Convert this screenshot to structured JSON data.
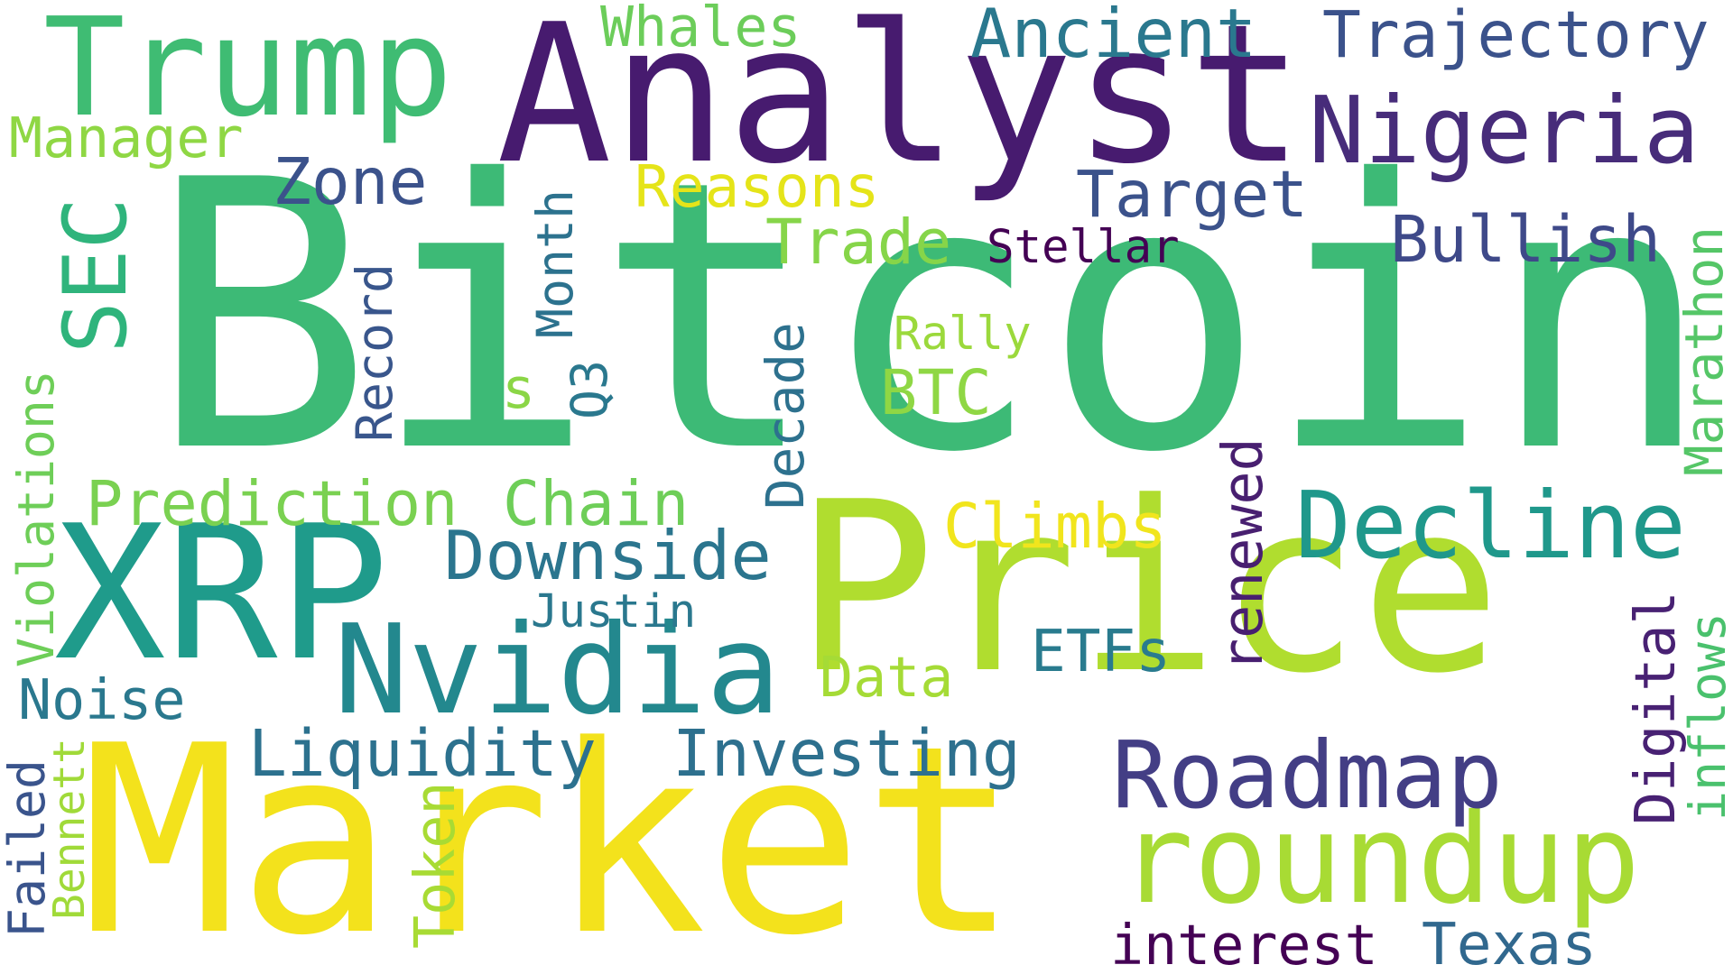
{
  "words": [
    {
      "text": "Bitcoin",
      "color": "#3dba76"
    },
    {
      "text": "Price",
      "color": "#b0dd2f"
    },
    {
      "text": "Market",
      "color": "#f3e21c"
    },
    {
      "text": "Analyst",
      "color": "#471b6f"
    },
    {
      "text": "XRP",
      "color": "#1f9b8b"
    },
    {
      "text": "Trump",
      "color": "#3fbc73"
    },
    {
      "text": "Nigeria",
      "color": "#472c7a"
    },
    {
      "text": "roundup",
      "color": "#a8db34"
    },
    {
      "text": "Nvidia",
      "color": "#23888e"
    },
    {
      "text": "Decline",
      "color": "#1f988b"
    },
    {
      "text": "Roadmap",
      "color": "#433e85"
    },
    {
      "text": "SEC",
      "color": "#2fb47c"
    },
    {
      "text": "Trajectory",
      "color": "#3b528b"
    },
    {
      "text": "Ancient",
      "color": "#2a788e"
    },
    {
      "text": "Whales",
      "color": "#6ccd5a"
    },
    {
      "text": "Manager",
      "color": "#8fd744"
    },
    {
      "text": "Target",
      "color": "#3b528b"
    },
    {
      "text": "Bullish",
      "color": "#3e4989"
    },
    {
      "text": "Zone",
      "color": "#3b528b"
    },
    {
      "text": "Reasons",
      "color": "#e5e419"
    },
    {
      "text": "Trade",
      "color": "#86d549"
    },
    {
      "text": "Stellar",
      "color": "#440154"
    },
    {
      "text": "Month",
      "color": "#2c728e"
    },
    {
      "text": "Record",
      "color": "#39568c"
    },
    {
      "text": "s",
      "color": "#8bd646"
    },
    {
      "text": "Q3",
      "color": "#2a788e"
    },
    {
      "text": "Rally",
      "color": "#9bd93c"
    },
    {
      "text": "BTC",
      "color": "#8fd744"
    },
    {
      "text": "Decade",
      "color": "#2d718e"
    },
    {
      "text": "Marathon",
      "color": "#55c667"
    },
    {
      "text": "Violations",
      "color": "#6ece58"
    },
    {
      "text": "renewed",
      "color": "#481f70"
    },
    {
      "text": "Prediction",
      "color": "#7ad151"
    },
    {
      "text": "Chain",
      "color": "#6ece58"
    },
    {
      "text": "Climbs",
      "color": "#f1e51d"
    },
    {
      "text": "Downside",
      "color": "#2b758e"
    },
    {
      "text": "Justin",
      "color": "#2a788e"
    },
    {
      "text": "Digital",
      "color": "#482173"
    },
    {
      "text": "inflows",
      "color": "#4ac16d"
    },
    {
      "text": "ETFs",
      "color": "#297b8e"
    },
    {
      "text": "Data",
      "color": "#a5db36"
    },
    {
      "text": "Noise",
      "color": "#2a788e"
    },
    {
      "text": "Liquidity",
      "color": "#2c718e"
    },
    {
      "text": "Investing",
      "color": "#2d708e"
    },
    {
      "text": "Failed",
      "color": "#3a548c"
    },
    {
      "text": "Bennett",
      "color": "#a0da39"
    },
    {
      "text": "Token",
      "color": "#a8db34"
    },
    {
      "text": "interest",
      "color": "#440154"
    },
    {
      "text": "Texas",
      "color": "#31688e"
    }
  ]
}
